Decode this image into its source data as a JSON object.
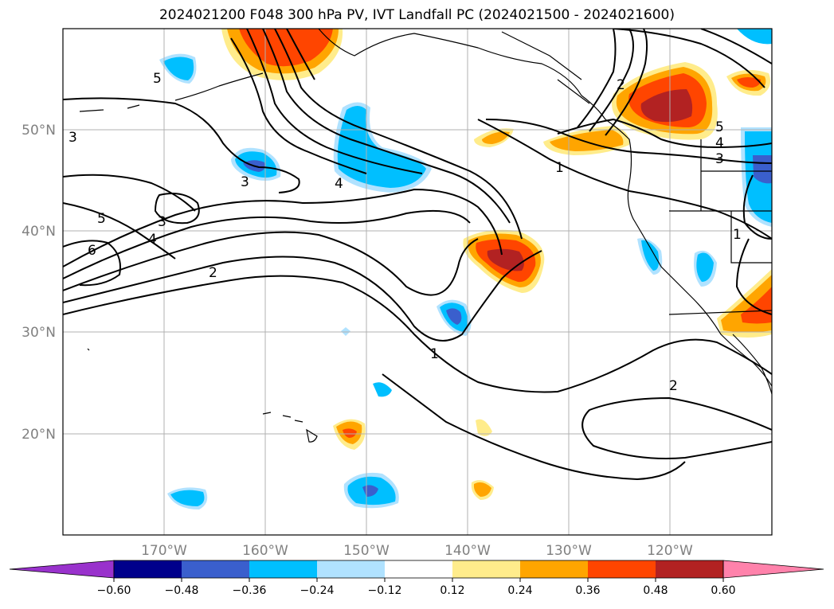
{
  "title": "2024021200 F048 300 hPa PV, IVT Landfall PC (2024021500 - 2024021600)",
  "lat_labels": [
    "50°N",
    "40°N",
    "30°N",
    "20°N"
  ],
  "lon_labels": [
    "170°W",
    "160°W",
    "150°W",
    "140°W",
    "130°W",
    "120°W"
  ],
  "contour_labels": [
    "5",
    "3",
    "5",
    "3",
    "4",
    "6",
    "3",
    "4",
    "2",
    "2",
    "1",
    "5",
    "4",
    "3",
    "1",
    "1",
    "2"
  ],
  "colorbar": {
    "tick_labels": [
      "−0.60",
      "−0.48",
      "−0.36",
      "−0.24",
      "−0.12",
      "0.12",
      "0.24",
      "0.36",
      "0.48",
      "0.60"
    ],
    "colors": [
      "#9932CC",
      "#00008B",
      "#3A5FCD",
      "#00BFFF",
      "#B0E2FF",
      "#FFFFFF",
      "#FFEC8B",
      "#FFA500",
      "#FF4500",
      "#B22222",
      "#FF82AB"
    ]
  },
  "colors": {
    "coast": "#000000",
    "grid": "#b0b0b0",
    "contour": "#000000"
  }
}
